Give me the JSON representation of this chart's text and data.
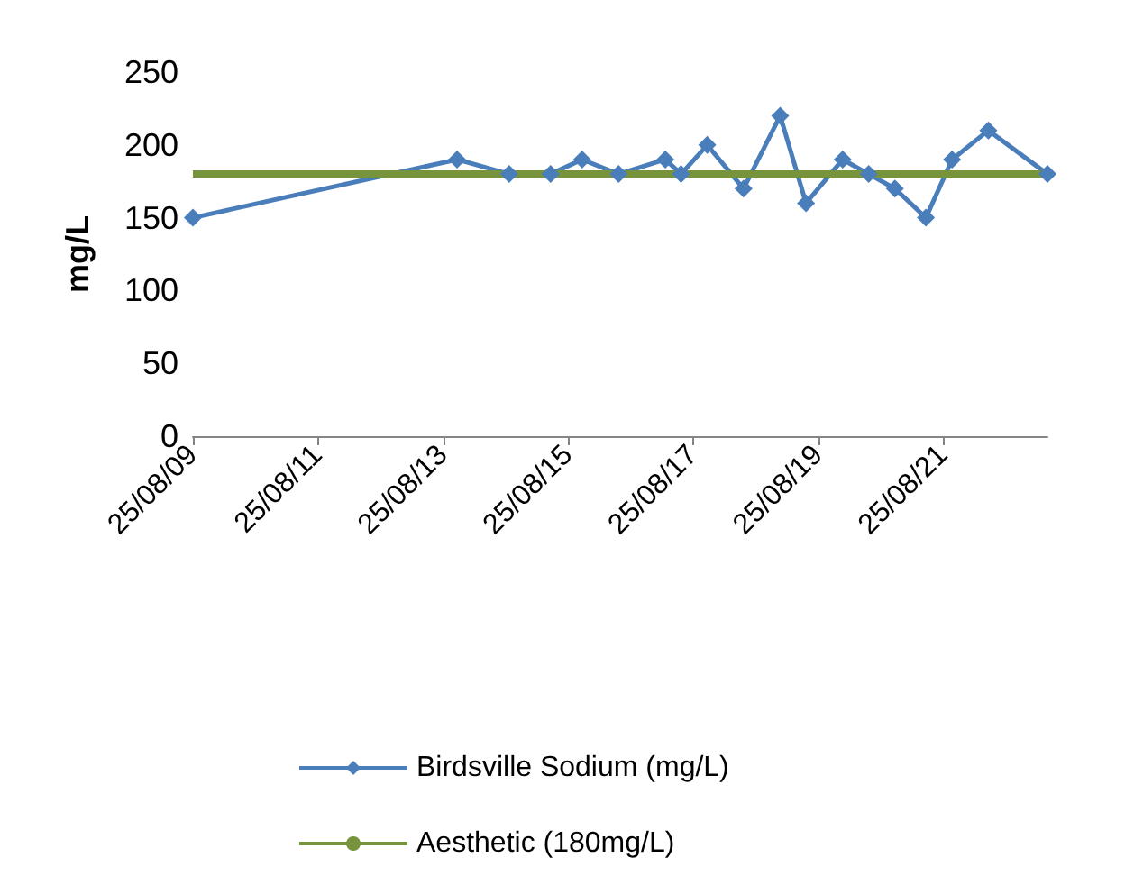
{
  "chart_data": {
    "type": "line",
    "ylabel": "mg/L",
    "xlim": [
      "2009-08-25",
      "2023-04-25"
    ],
    "xticks": [
      {
        "value": "2009-08-25",
        "label": "25/08/09"
      },
      {
        "value": "2011-08-25",
        "label": "25/08/11"
      },
      {
        "value": "2013-08-25",
        "label": "25/08/13"
      },
      {
        "value": "2015-08-25",
        "label": "25/08/15"
      },
      {
        "value": "2017-08-25",
        "label": "25/08/17"
      },
      {
        "value": "2019-08-25",
        "label": "25/08/19"
      },
      {
        "value": "2021-08-25",
        "label": "25/08/21"
      }
    ],
    "ylim": [
      0,
      250
    ],
    "yticks": [
      0,
      50,
      100,
      150,
      200,
      250
    ],
    "grid": false,
    "legend": "bottom",
    "series": [
      {
        "name": "Birdsville Sodium (mg/L)",
        "color": "#4a7ebb",
        "marker": "diamond",
        "x": [
          "2009-08-25",
          "2013-11",
          "2014-09",
          "2015-05",
          "2015-11",
          "2016-06",
          "2017-03",
          "2017-06",
          "2017-11",
          "2018-06",
          "2019-01",
          "2019-06",
          "2020-01",
          "2020-06",
          "2020-11",
          "2021-05",
          "2021-10",
          "2022-05",
          "2023-04-25"
        ],
        "values": [
          150,
          190,
          180,
          180,
          190,
          180,
          190,
          180,
          200,
          170,
          220,
          160,
          190,
          180,
          170,
          150,
          190,
          210,
          180
        ]
      },
      {
        "name": "Aesthetic (180mg/L)",
        "color": "#77933c",
        "marker": "none",
        "x": [
          "2009-08-25",
          "2023-04-25"
        ],
        "values": [
          180,
          180
        ]
      }
    ]
  }
}
